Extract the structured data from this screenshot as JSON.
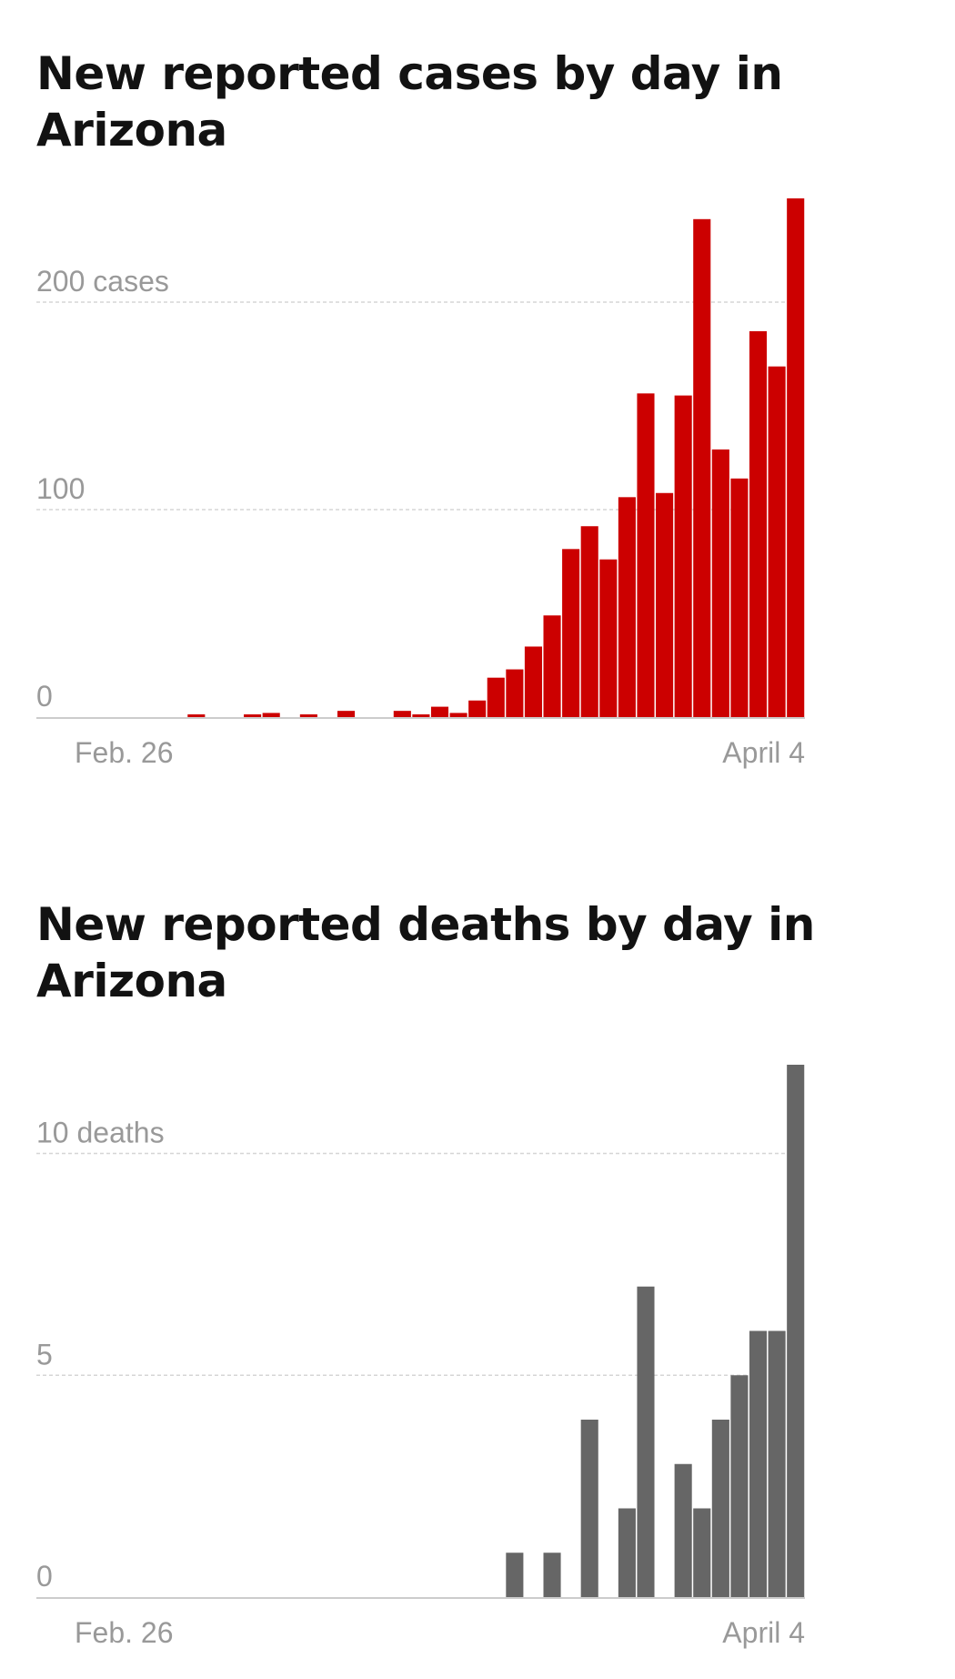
{
  "chart_data": [
    {
      "type": "bar",
      "title": "New reported cases by day in Arizona",
      "x_start_label": "Feb. 26",
      "x_end_label": "April 4",
      "ylim": [
        0,
        250
      ],
      "yticks": [
        0,
        100,
        200
      ],
      "ytick_labels": [
        "0",
        "100",
        "200 cases"
      ],
      "grid": true,
      "bar_color": "#cc0000",
      "values": [
        0,
        0,
        0,
        0,
        0,
        0,
        1,
        0,
        0,
        1,
        2,
        0,
        1,
        0,
        3,
        0,
        0,
        3,
        1,
        5,
        2,
        8,
        19,
        23,
        34,
        49,
        81,
        92,
        76,
        106,
        156,
        108,
        155,
        240,
        129,
        115,
        186,
        169,
        250
      ]
    },
    {
      "type": "bar",
      "title": "New reported deaths by day in Arizona",
      "x_start_label": "Feb. 26",
      "x_end_label": "April 4",
      "ylim": [
        0,
        12
      ],
      "yticks": [
        0,
        5,
        10
      ],
      "ytick_labels": [
        "0",
        "5",
        "10 deaths"
      ],
      "grid": true,
      "bar_color": "#666666",
      "values": [
        0,
        0,
        0,
        0,
        0,
        0,
        0,
        0,
        0,
        0,
        0,
        0,
        0,
        0,
        0,
        0,
        0,
        0,
        0,
        0,
        0,
        0,
        0,
        1,
        0,
        1,
        0,
        4,
        0,
        2,
        7,
        0,
        3,
        2,
        4,
        5,
        6,
        6,
        12
      ]
    }
  ]
}
